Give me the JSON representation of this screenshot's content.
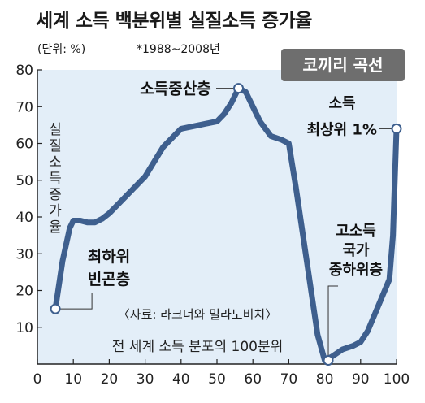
{
  "header": {
    "title": "세계 소득 백분위별 실질소득 증가율",
    "unit_note": "(단위: %)",
    "period_note": "*1988~2008년",
    "badge": "코끼리 곡선"
  },
  "colors": {
    "plot_bg": "#e3eef8",
    "line": "#3e5f8e",
    "marker_fill": "#ffffff",
    "badge_bg": "#6e6e6e",
    "axis": "#222222"
  },
  "chart_data": {
    "type": "line",
    "title": "세계 소득 백분위별 실질소득 증가율",
    "xlabel": "전 세계 소득 분포의 100분위",
    "ylabel": "실질소득증가율",
    "source": "〈자료: 라크너와 밀라노비치〉",
    "xlim": [
      0,
      100
    ],
    "ylim": [
      0,
      80
    ],
    "x_ticks": [
      "0",
      "10",
      "20",
      "30",
      "40",
      "50",
      "60",
      "70",
      "80",
      "90",
      "100"
    ],
    "y_ticks": [
      "10",
      "20",
      "30",
      "40",
      "50",
      "60",
      "70",
      "80"
    ],
    "grid": false,
    "series": [
      {
        "x": [
          5,
          7,
          9,
          10,
          12,
          14,
          16,
          18,
          20,
          25,
          30,
          35,
          40,
          45,
          50,
          52,
          54,
          56,
          58,
          60,
          62,
          65,
          68,
          70,
          72,
          75,
          78,
          80,
          82,
          85,
          88,
          90,
          92,
          95,
          98,
          99,
          100
        ],
        "values": [
          15,
          28,
          37,
          39,
          39,
          38.5,
          38.5,
          39.5,
          41,
          46,
          51,
          59,
          64,
          65,
          66,
          68,
          71,
          75,
          74,
          70,
          66,
          62,
          61,
          60,
          48,
          28,
          8,
          1,
          2,
          4,
          5,
          6,
          9,
          16,
          23,
          35,
          64
        ]
      }
    ],
    "annotations": [
      {
        "label": "최하위\n빈곤층",
        "x": 5,
        "y": 15
      },
      {
        "label": "소득중산층",
        "x": 56,
        "y": 75
      },
      {
        "label": "고소득\n국가\n중하위층",
        "x": 81,
        "y": 1
      },
      {
        "label": "소득\n최상위 1%",
        "x": 100,
        "y": 64
      }
    ]
  }
}
